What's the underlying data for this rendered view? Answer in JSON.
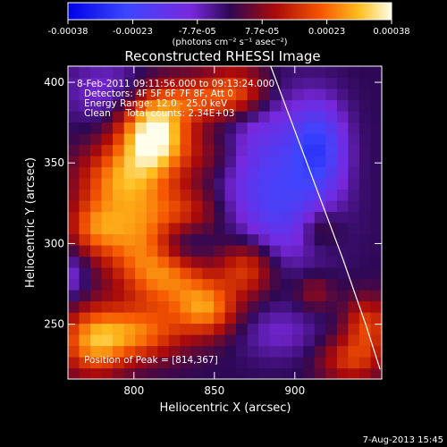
{
  "chart_data": {
    "type": "heatmap",
    "title": "Reconstructed RHESSI Image",
    "xlabel": "Heliocentric X (arcsec)",
    "ylabel": "Heliocentric Y (arcsec)",
    "x_ticks": [
      "800",
      "850",
      "900"
    ],
    "y_ticks": [
      "250",
      "300",
      "350",
      "400"
    ],
    "xlim": [
      759,
      954
    ],
    "ylim": [
      216,
      410
    ],
    "colorbar": {
      "ticks": [
        "-0.00038",
        "-0.00023",
        "-7.7e-05",
        "7.7e-05",
        "0.00023",
        "0.00038"
      ],
      "unit_label": "(photons cm⁻² s⁻¹ asec⁻²)",
      "range": [
        -0.00038,
        0.00038
      ]
    },
    "annotations": [
      "8-Feb-2011 09:11:56.000 to 09:13:24.000",
      "Detectors: 4F 5F 6F 7F 8F, Att 0",
      "Energy Range: 12.0 - 25.0 keV",
      "Clean     Total counts: 2.34E+03"
    ],
    "peak_label": "Position of Peak = [814,367]",
    "peak": [
      814,
      367
    ],
    "limb": [
      [
        885,
        410
      ],
      [
        900,
        370
      ],
      [
        915,
        330
      ],
      [
        930,
        290
      ],
      [
        944,
        250
      ],
      [
        953,
        222
      ]
    ],
    "blobs": [
      [
        812,
        368,
        0.0004,
        15,
        18
      ],
      [
        790,
        340,
        0.00022,
        18,
        15
      ],
      [
        775,
        310,
        0.00018,
        12,
        12
      ],
      [
        800,
        305,
        0.0002,
        16,
        18
      ],
      [
        830,
        320,
        0.00015,
        18,
        12
      ],
      [
        820,
        280,
        0.00022,
        18,
        14
      ],
      [
        845,
        260,
        0.00024,
        14,
        12
      ],
      [
        870,
        285,
        0.00018,
        12,
        12
      ],
      [
        775,
        240,
        0.00026,
        15,
        15
      ],
      [
        805,
        245,
        0.00021,
        18,
        12
      ],
      [
        865,
        395,
        0.00018,
        14,
        12
      ],
      [
        840,
        390,
        0.00016,
        18,
        10
      ],
      [
        850,
        355,
        0.0001,
        18,
        12
      ],
      [
        915,
        310,
        0.00012,
        10,
        10
      ],
      [
        945,
        250,
        0.00018,
        10,
        12
      ],
      [
        935,
        228,
        0.00016,
        14,
        10
      ],
      [
        912,
        270,
        9e-05,
        8,
        8
      ],
      [
        880,
        350,
        -0.00018,
        22,
        30
      ],
      [
        915,
        360,
        -0.00022,
        12,
        20
      ],
      [
        900,
        315,
        -0.00012,
        20,
        20
      ],
      [
        785,
        395,
        -0.0001,
        20,
        14
      ],
      [
        830,
        300,
        -0.0001,
        12,
        10
      ],
      [
        890,
        245,
        -8e-05,
        18,
        12
      ],
      [
        760,
        280,
        -0.0001,
        8,
        12
      ]
    ]
  },
  "footer_date": "7-Aug-2013 15:45"
}
